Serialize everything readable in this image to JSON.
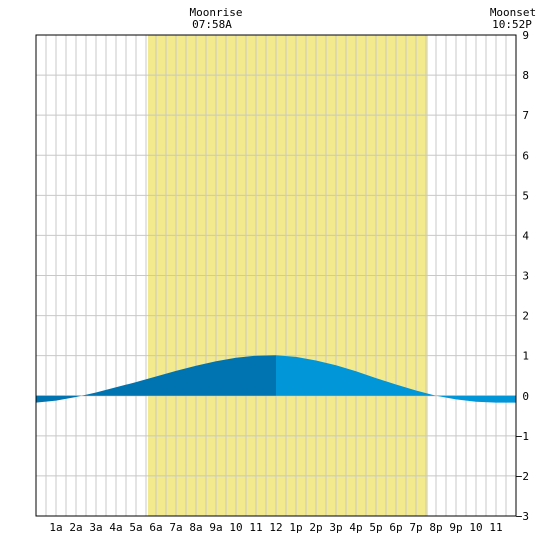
{
  "chart_data": {
    "type": "area",
    "title": "",
    "xlabel": "",
    "ylabel": "",
    "x_tick_labels": [
      "1a",
      "2a",
      "3a",
      "4a",
      "5a",
      "6a",
      "7a",
      "8a",
      "9a",
      "10",
      "11",
      "12",
      "1p",
      "2p",
      "3p",
      "4p",
      "5p",
      "6p",
      "7p",
      "8p",
      "9p",
      "10",
      "11"
    ],
    "x_range_hours": [
      0,
      24
    ],
    "ylim": [
      -3,
      9
    ],
    "y_ticks": [
      -3,
      -2,
      -1,
      0,
      1,
      2,
      3,
      4,
      5,
      6,
      7,
      8,
      9
    ],
    "grid": true,
    "daylight_hours": [
      5.6,
      19.6
    ],
    "series": [
      {
        "x_hours": [
          0,
          1,
          2,
          3,
          4,
          5,
          6,
          7,
          8,
          9,
          10,
          11,
          12,
          13,
          14,
          15,
          16,
          17,
          18,
          19,
          20,
          21,
          22,
          23,
          24
        ],
        "values": [
          -0.17,
          -0.12,
          -0.03,
          0.08,
          0.21,
          0.34,
          0.48,
          0.62,
          0.75,
          0.86,
          0.95,
          1.0,
          1.01,
          0.97,
          0.88,
          0.76,
          0.61,
          0.44,
          0.28,
          0.13,
          0.0,
          -0.09,
          -0.15,
          -0.17,
          -0.17
        ]
      }
    ],
    "annotations": [
      {
        "label": "Moonrise",
        "time": "07:58A",
        "hour": 7.97
      },
      {
        "label": "Moonset",
        "time": "10:52P",
        "hour": 22.87
      }
    ],
    "colors": {
      "daylight": "#f2ea8c",
      "grid": "#c8c8c8",
      "frame": "#000000",
      "tide_rising": "#0074b0",
      "tide_falling": "#0096d8"
    }
  }
}
